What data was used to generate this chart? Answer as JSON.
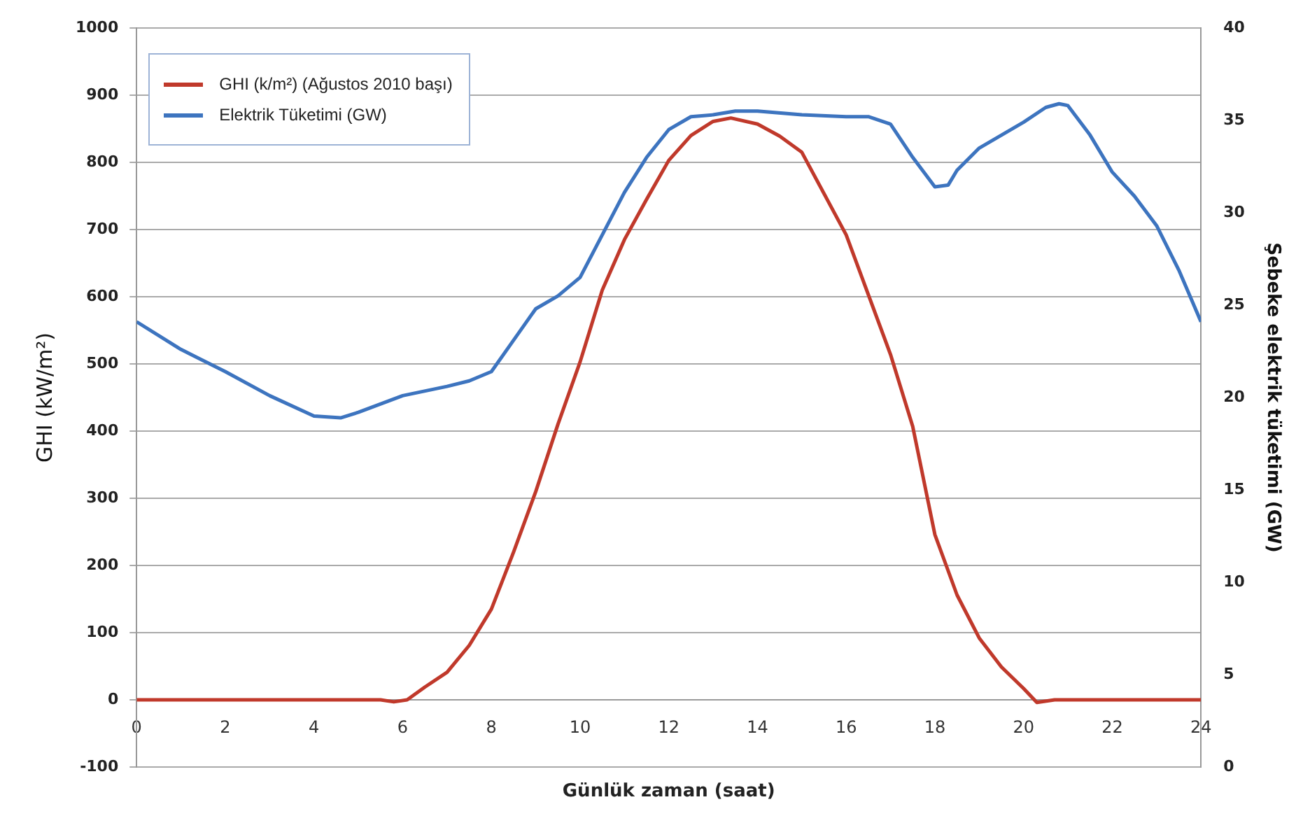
{
  "chart_data": {
    "type": "line",
    "xlabel": "Günlük zaman (saat)",
    "ylabel": "GHI (kW/m²)",
    "y2label": "Şebeke elektrik tüketimi (GW)",
    "xlim": [
      0,
      24
    ],
    "xticks": [
      0,
      2,
      4,
      6,
      8,
      10,
      12,
      14,
      16,
      18,
      20,
      22,
      24
    ],
    "ylim": [
      -100,
      1000
    ],
    "yticks": [
      -100,
      0,
      100,
      200,
      300,
      400,
      500,
      600,
      700,
      800,
      900,
      1000
    ],
    "y2lim": [
      0,
      40
    ],
    "y2ticks": [
      0,
      5,
      10,
      15,
      20,
      25,
      30,
      35,
      40
    ],
    "grid": "y",
    "legend": "top left",
    "marker": "none",
    "line_style": "solid",
    "series": [
      {
        "name": "GHI (k/m²) (Ağustos 2010 başı)",
        "color": "#c0392b",
        "x": [
          0,
          2,
          4,
          5.5,
          5.8,
          6.1,
          6.5,
          7,
          7.5,
          8,
          8.5,
          9,
          9.5,
          10,
          10.5,
          11,
          11.5,
          12,
          12.5,
          13,
          13.4,
          14,
          14.5,
          15,
          16,
          17,
          17.5,
          18,
          18.5,
          19,
          19.5,
          20,
          20.3,
          20.7,
          22,
          24
        ],
        "values": [
          0,
          0,
          0,
          0,
          -3,
          0,
          19,
          41,
          81,
          135,
          220,
          310,
          410,
          503,
          610,
          685,
          745,
          803,
          840,
          861,
          866,
          857,
          839,
          815,
          692,
          514,
          407,
          246,
          156,
          92,
          49,
          17,
          -4,
          0,
          0,
          0
        ]
      },
      {
        "name": "Elektrik Tüketimi (GW)",
        "color": "#3d74bf",
        "axis": "y2",
        "x": [
          0,
          1,
          2,
          3,
          4,
          4.6,
          5,
          6,
          7,
          7.5,
          8,
          8.5,
          9,
          9.5,
          10,
          10.5,
          11,
          11.5,
          12,
          12.5,
          13,
          13.5,
          14,
          15,
          16,
          16.5,
          17,
          17.5,
          18,
          18.3,
          18.5,
          19,
          19.5,
          20,
          20.5,
          20.8,
          21,
          21.5,
          22,
          22.5,
          23,
          23.5,
          24
        ],
        "values": [
          24.1,
          22.6,
          21.4,
          20.1,
          19.0,
          18.9,
          19.2,
          20.1,
          20.6,
          20.9,
          21.4,
          23.1,
          24.8,
          25.5,
          26.5,
          28.8,
          31.1,
          33.0,
          34.5,
          35.2,
          35.3,
          35.5,
          35.5,
          35.3,
          35.2,
          35.2,
          34.8,
          33.0,
          31.4,
          31.5,
          32.3,
          33.5,
          34.2,
          34.9,
          35.7,
          35.9,
          35.8,
          34.2,
          32.2,
          30.9,
          29.3,
          26.9,
          24.1
        ]
      }
    ]
  }
}
